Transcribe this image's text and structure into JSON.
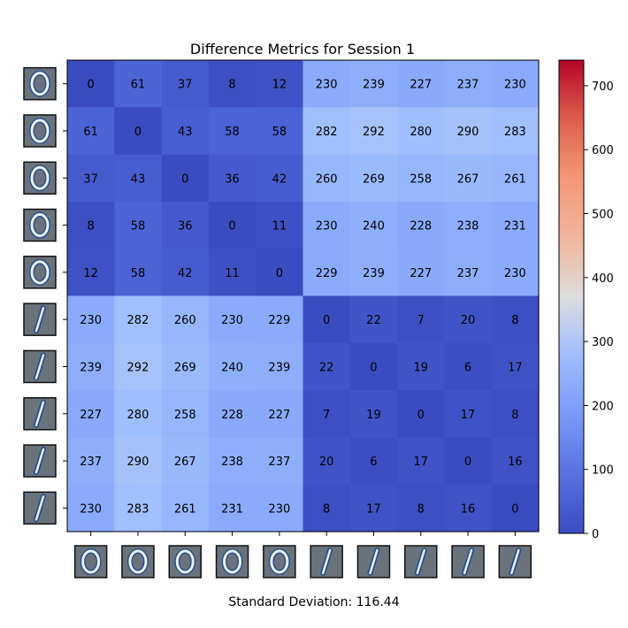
{
  "chart_data": {
    "type": "heatmap",
    "title": "Difference Metrics for Session 1",
    "footer": "Standard Deviation: 116.44",
    "row_thumbnails": [
      "digit-0",
      "digit-0",
      "digit-0",
      "digit-0",
      "digit-0",
      "digit-1",
      "digit-1",
      "digit-1",
      "digit-1",
      "digit-1"
    ],
    "col_thumbnails": [
      "digit-0",
      "digit-0",
      "digit-0",
      "digit-0",
      "digit-0",
      "digit-1",
      "digit-1",
      "digit-1",
      "digit-1",
      "digit-1"
    ],
    "values": [
      [
        0,
        61,
        37,
        8,
        12,
        230,
        239,
        227,
        237,
        230
      ],
      [
        61,
        0,
        43,
        58,
        58,
        282,
        292,
        280,
        290,
        283
      ],
      [
        37,
        43,
        0,
        36,
        42,
        260,
        269,
        258,
        267,
        261
      ],
      [
        8,
        58,
        36,
        0,
        11,
        230,
        240,
        228,
        238,
        231
      ],
      [
        12,
        58,
        42,
        11,
        0,
        229,
        239,
        227,
        237,
        230
      ],
      [
        230,
        282,
        260,
        230,
        229,
        0,
        22,
        7,
        20,
        8
      ],
      [
        239,
        292,
        269,
        240,
        239,
        22,
        0,
        19,
        6,
        17
      ],
      [
        227,
        280,
        258,
        228,
        227,
        7,
        19,
        0,
        17,
        8
      ],
      [
        237,
        290,
        267,
        238,
        237,
        20,
        6,
        17,
        0,
        16
      ],
      [
        230,
        283,
        261,
        231,
        230,
        8,
        17,
        8,
        16,
        0
      ]
    ],
    "colormap": "coolwarm",
    "vmin": 0,
    "vmax": 740,
    "colorbar_ticks": [
      0,
      100,
      200,
      300,
      400,
      500,
      600,
      700
    ],
    "colorbar_tick_labels": [
      "0",
      "100",
      "200",
      "300",
      "400",
      "500",
      "600",
      "700"
    ]
  }
}
